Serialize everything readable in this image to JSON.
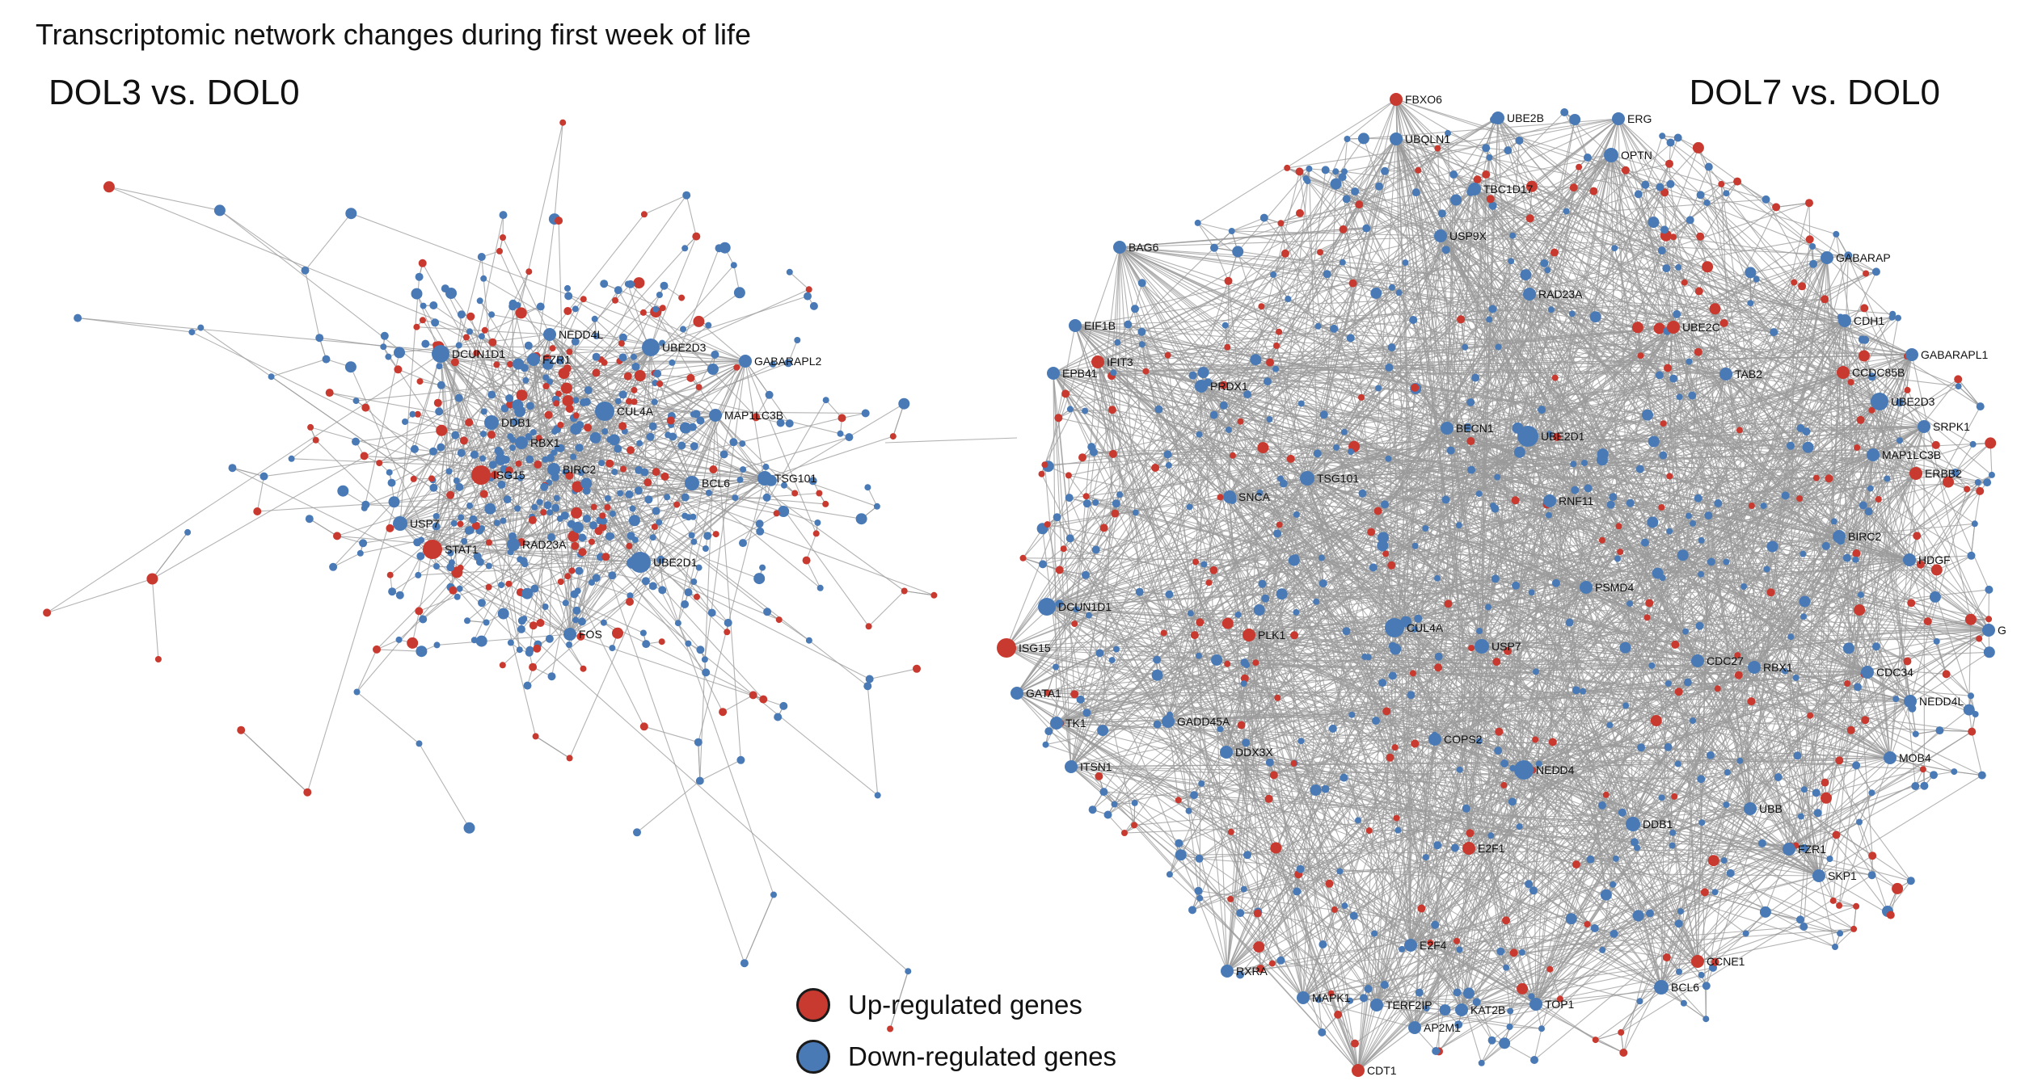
{
  "figure": {
    "title": "Transcriptomic network changes during first week of life"
  },
  "colors": {
    "up": "#c8392f",
    "down": "#4a7ab5",
    "edge": "#9a9a9a"
  },
  "legend": {
    "up_label": "Up-regulated genes",
    "down_label": "Down-regulated genes"
  },
  "panels": [
    {
      "id": "dol3",
      "title": "DOL3 vs. DOL0",
      "labeled_nodes": [
        {
          "label": "DCUN1D1",
          "reg": "down"
        },
        {
          "label": "NEDD4L",
          "reg": "down"
        },
        {
          "label": "FZR1",
          "reg": "down"
        },
        {
          "label": "UBE2D3",
          "reg": "down"
        },
        {
          "label": "GABARAPL2",
          "reg": "down"
        },
        {
          "label": "DDB1",
          "reg": "down"
        },
        {
          "label": "CUL4A",
          "reg": "down"
        },
        {
          "label": "MAP1LC3B",
          "reg": "down"
        },
        {
          "label": "RBX1",
          "reg": "down"
        },
        {
          "label": "BIRC2",
          "reg": "down"
        },
        {
          "label": "ISG15",
          "reg": "up"
        },
        {
          "label": "BCL6",
          "reg": "down"
        },
        {
          "label": "TSG101",
          "reg": "down"
        },
        {
          "label": "USP7",
          "reg": "down"
        },
        {
          "label": "RAD23A",
          "reg": "down"
        },
        {
          "label": "STAT1",
          "reg": "up"
        },
        {
          "label": "UBE2D1",
          "reg": "down"
        },
        {
          "label": "FOS",
          "reg": "down"
        }
      ]
    },
    {
      "id": "dol7",
      "title": "DOL7 vs. DOL0",
      "labeled_nodes": [
        {
          "label": "FBXO6",
          "reg": "up"
        },
        {
          "label": "UBE2B",
          "reg": "down"
        },
        {
          "label": "ERG",
          "reg": "down"
        },
        {
          "label": "UBQLN1",
          "reg": "down"
        },
        {
          "label": "OPTN",
          "reg": "down"
        },
        {
          "label": "TBC1D17",
          "reg": "down"
        },
        {
          "label": "USP9X",
          "reg": "down"
        },
        {
          "label": "BAG6",
          "reg": "down"
        },
        {
          "label": "GABARAP",
          "reg": "down"
        },
        {
          "label": "RAD23A",
          "reg": "down"
        },
        {
          "label": "CDH1",
          "reg": "down"
        },
        {
          "label": "EIF1B",
          "reg": "down"
        },
        {
          "label": "UBE2C",
          "reg": "up"
        },
        {
          "label": "IFIT3",
          "reg": "up"
        },
        {
          "label": "GABARAPL1",
          "reg": "down"
        },
        {
          "label": "EPB41",
          "reg": "down"
        },
        {
          "label": "TAB2",
          "reg": "down"
        },
        {
          "label": "CCDC85B",
          "reg": "up"
        },
        {
          "label": "PRDX1",
          "reg": "down"
        },
        {
          "label": "UBE2D3",
          "reg": "down"
        },
        {
          "label": "SRPK1",
          "reg": "down"
        },
        {
          "label": "BECN1",
          "reg": "down"
        },
        {
          "label": "UBE2D1",
          "reg": "down"
        },
        {
          "label": "MAP1LC3B",
          "reg": "down"
        },
        {
          "label": "ERBB2",
          "reg": "up"
        },
        {
          "label": "SNCA",
          "reg": "down"
        },
        {
          "label": "TSG101",
          "reg": "down"
        },
        {
          "label": "RNF11",
          "reg": "down"
        },
        {
          "label": "BIRC2",
          "reg": "down"
        },
        {
          "label": "HDGF",
          "reg": "down"
        },
        {
          "label": "PSMD4",
          "reg": "down"
        },
        {
          "label": "DCUN1D1",
          "reg": "down"
        },
        {
          "label": "CUL4A",
          "reg": "down"
        },
        {
          "label": "G",
          "reg": "down"
        },
        {
          "label": "PLK1",
          "reg": "up"
        },
        {
          "label": "USP7",
          "reg": "down"
        },
        {
          "label": "ISG15",
          "reg": "up"
        },
        {
          "label": "CDC27",
          "reg": "down"
        },
        {
          "label": "RBX1",
          "reg": "down"
        },
        {
          "label": "CDC34",
          "reg": "down"
        },
        {
          "label": "GATA1",
          "reg": "down"
        },
        {
          "label": "NEDD4L",
          "reg": "down"
        },
        {
          "label": "TK1",
          "reg": "down"
        },
        {
          "label": "GADD45A",
          "reg": "down"
        },
        {
          "label": "COPS2",
          "reg": "down"
        },
        {
          "label": "DDX3X",
          "reg": "down"
        },
        {
          "label": "MOB4",
          "reg": "down"
        },
        {
          "label": "ITSN1",
          "reg": "down"
        },
        {
          "label": "NEDD4",
          "reg": "down"
        },
        {
          "label": "UBB",
          "reg": "down"
        },
        {
          "label": "DDB1",
          "reg": "down"
        },
        {
          "label": "E2F1",
          "reg": "up"
        },
        {
          "label": "FZR1",
          "reg": "down"
        },
        {
          "label": "SKP1",
          "reg": "down"
        },
        {
          "label": "E2F4",
          "reg": "down"
        },
        {
          "label": "CCNE1",
          "reg": "up"
        },
        {
          "label": "RXRA",
          "reg": "down"
        },
        {
          "label": "BCL6",
          "reg": "down"
        },
        {
          "label": "MAPK1",
          "reg": "down"
        },
        {
          "label": "TERF2IP",
          "reg": "down"
        },
        {
          "label": "KAT2B",
          "reg": "down"
        },
        {
          "label": "TOP1",
          "reg": "down"
        },
        {
          "label": "AP2M1",
          "reg": "down"
        },
        {
          "label": "CDT1",
          "reg": "up"
        }
      ]
    }
  ]
}
